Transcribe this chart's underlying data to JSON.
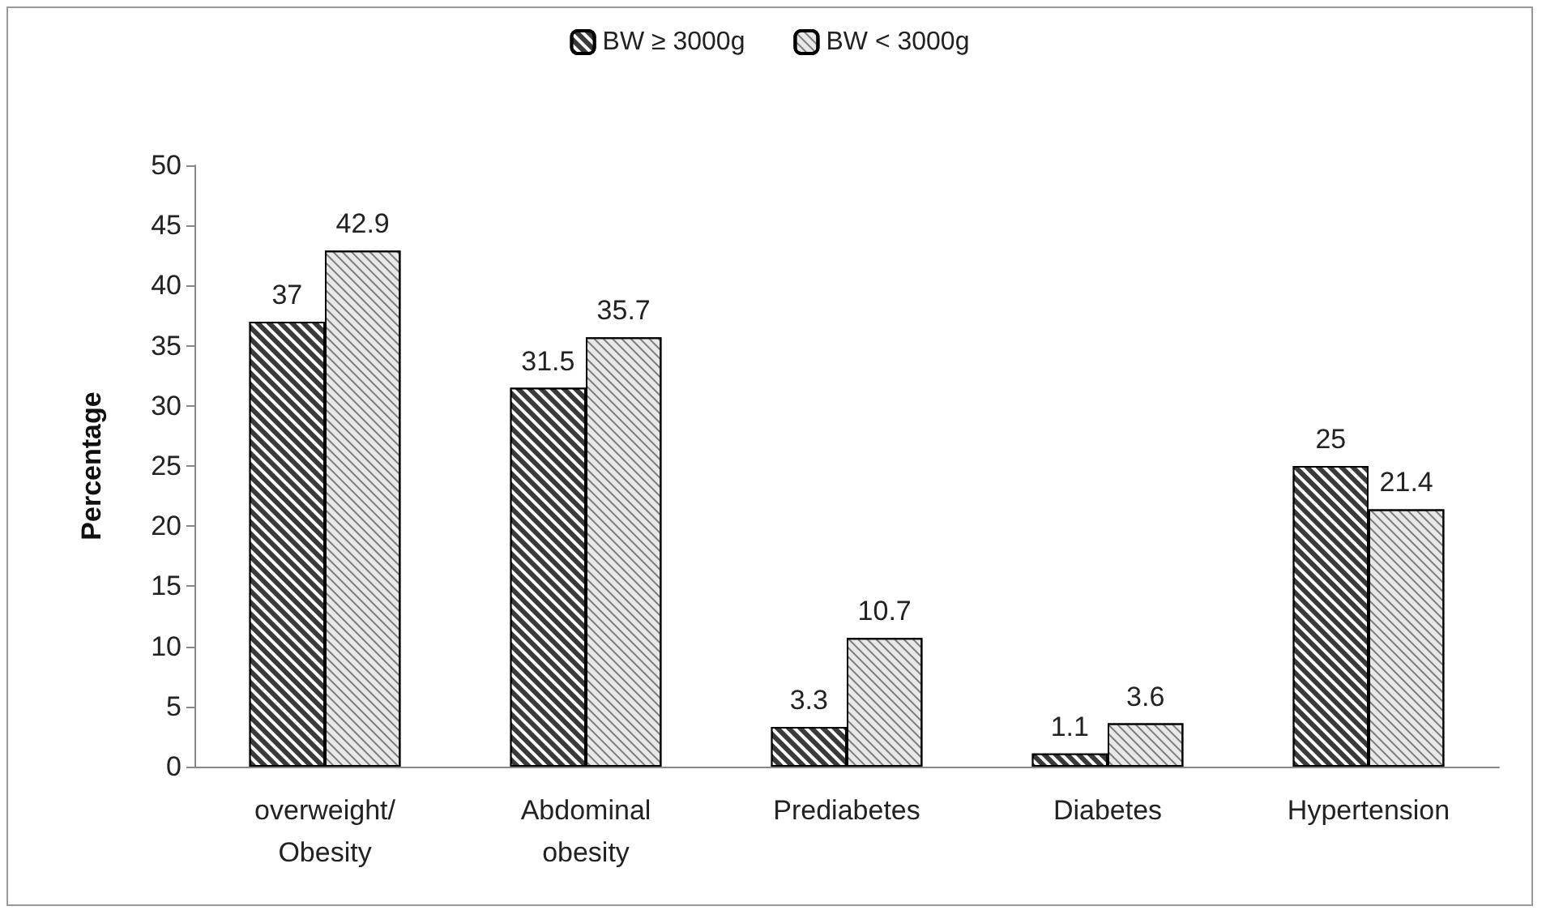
{
  "chart_data": {
    "type": "bar",
    "ylabel": "Percentage",
    "categories": [
      "overweight/\nObesity",
      "Abdominal\nobesity",
      "Prediabetes",
      "Diabetes",
      "Hypertension"
    ],
    "series": [
      {
        "name": "BW ≥ 3000g",
        "color": "#3a3a3a",
        "values": [
          37,
          31.5,
          3.3,
          1.1,
          25
        ]
      },
      {
        "name": "BW < 3000g",
        "color": "#e8e8e8",
        "values": [
          42.9,
          35.7,
          10.7,
          3.6,
          21.4
        ]
      }
    ],
    "ylim": [
      0,
      50
    ],
    "yticks": [
      0,
      5,
      10,
      15,
      20,
      25,
      30,
      35,
      40,
      45,
      50
    ],
    "grid": false,
    "legend": "top",
    "data_labels": true
  }
}
